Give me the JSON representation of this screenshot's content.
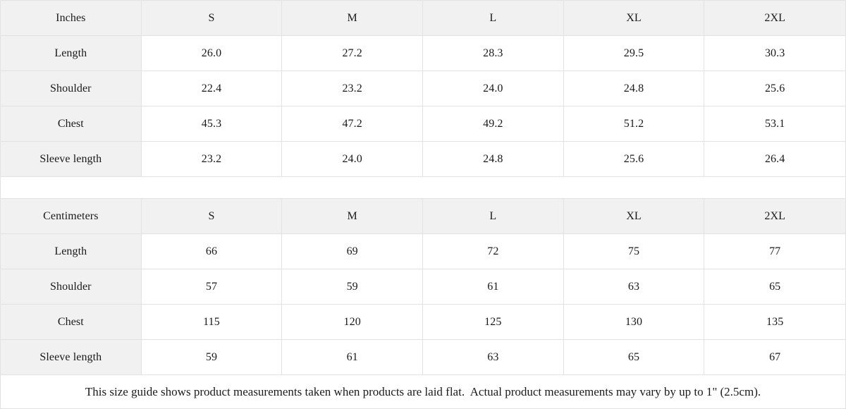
{
  "colors": {
    "header_bg": "#f1f1f1",
    "border": "#e2e2e2",
    "text": "#1a1a1a",
    "background": "#ffffff"
  },
  "tables": [
    {
      "unit_label": "Inches",
      "columns": [
        "S",
        "M",
        "L",
        "XL",
        "2XL"
      ],
      "rows": [
        {
          "label": "Length",
          "values": [
            "26.0",
            "27.2",
            "28.3",
            "29.5",
            "30.3"
          ]
        },
        {
          "label": "Shoulder",
          "values": [
            "22.4",
            "23.2",
            "24.0",
            "24.8",
            "25.6"
          ]
        },
        {
          "label": "Chest",
          "values": [
            "45.3",
            "47.2",
            "49.2",
            "51.2",
            "53.1"
          ]
        },
        {
          "label": "Sleeve length",
          "values": [
            "23.2",
            "24.0",
            "24.8",
            "25.6",
            "26.4"
          ]
        }
      ]
    },
    {
      "unit_label": "Centimeters",
      "columns": [
        "S",
        "M",
        "L",
        "XL",
        "2XL"
      ],
      "rows": [
        {
          "label": "Length",
          "values": [
            "66",
            "69",
            "72",
            "75",
            "77"
          ]
        },
        {
          "label": "Shoulder",
          "values": [
            "57",
            "59",
            "61",
            "63",
            "65"
          ]
        },
        {
          "label": "Chest",
          "values": [
            "115",
            "120",
            "125",
            "130",
            "135"
          ]
        },
        {
          "label": "Sleeve length",
          "values": [
            "59",
            "61",
            "63",
            "65",
            "67"
          ]
        }
      ]
    }
  ],
  "footer": {
    "note": "This size guide shows product measurements taken when products are laid flat.  Actual product measurements may vary by up to 1\" (2.5cm)."
  }
}
